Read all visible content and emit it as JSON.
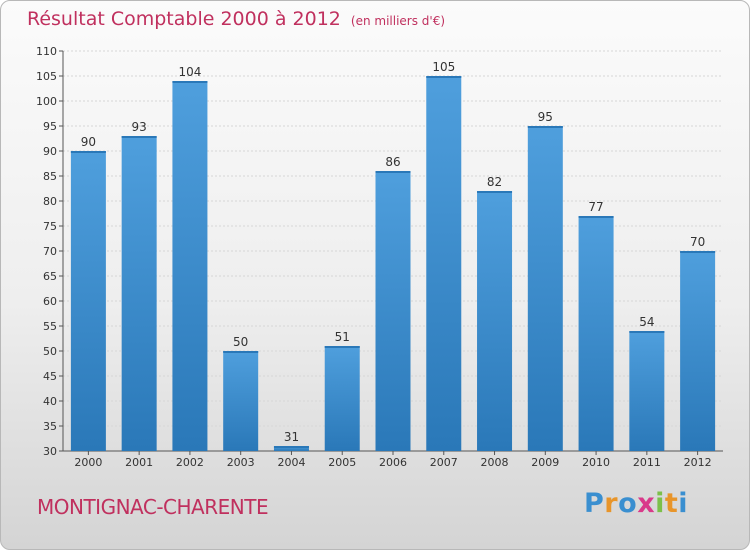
{
  "header": {
    "title": "Résultat Comptable 2000 à 2012",
    "subtitle": "(en milliers d'€)"
  },
  "footer": {
    "place": "MONTIGNAC-CHARENTE",
    "logo_letters": [
      {
        "char": "P",
        "color": "#3a8fd0"
      },
      {
        "char": "r",
        "color": "#e8952a"
      },
      {
        "char": "o",
        "color": "#3a8fd0"
      },
      {
        "char": "x",
        "color": "#d93a8a"
      },
      {
        "char": "i",
        "color": "#7cc04a"
      },
      {
        "char": "t",
        "color": "#e8952a"
      },
      {
        "char": "i",
        "color": "#3a8fd0"
      }
    ]
  },
  "chart_data": {
    "type": "bar",
    "title": "Résultat Comptable 2000 à 2012",
    "subtitle": "(en milliers d'€)",
    "categories": [
      "2000",
      "2001",
      "2002",
      "2003",
      "2004",
      "2005",
      "2006",
      "2007",
      "2008",
      "2009",
      "2010",
      "2011",
      "2012"
    ],
    "values": [
      90,
      93,
      104,
      50,
      31,
      51,
      86,
      105,
      82,
      95,
      77,
      54,
      70
    ],
    "ylim": [
      30,
      110
    ],
    "yticks": [
      30,
      35,
      40,
      45,
      50,
      55,
      60,
      65,
      70,
      75,
      80,
      85,
      90,
      95,
      100,
      105,
      110
    ],
    "grid": true,
    "bar_color": "#4f9fdd",
    "bar_color_dark": "#2a78b8"
  }
}
